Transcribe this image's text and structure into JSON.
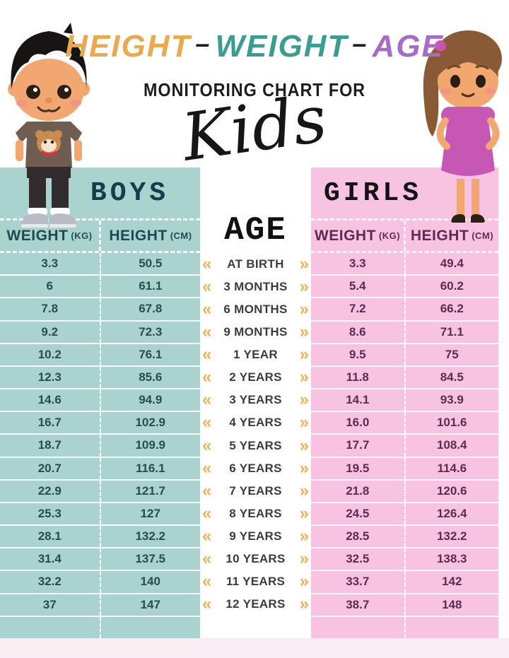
{
  "title": {
    "word1": "HEIGHT",
    "sep1": "–",
    "word2": "WEIGHT",
    "sep2": "–",
    "word3": "AGE",
    "subtitle": "MONITORING CHART FOR",
    "script_word": "Kids"
  },
  "boys": {
    "title": "BOYS",
    "weight_header": "WEIGHT",
    "weight_unit": "(KG)",
    "height_header": "HEIGHT",
    "height_unit": "(CM)"
  },
  "girls": {
    "title": "GIRLS",
    "weight_header": "WEIGHT",
    "weight_unit": "(KG)",
    "height_header": "HEIGHT",
    "height_unit": "(CM)"
  },
  "age": {
    "title": "AGE"
  },
  "icons": {
    "chevrons_left": "«",
    "chevrons_right": "»",
    "boy_illustration": "boy-cartoon",
    "girl_illustration": "girl-cartoon"
  },
  "colors": {
    "boys_panel": "#aad2cf",
    "girls_panel": "#f8c3e0",
    "title_height": "#e9a94e",
    "title_weight": "#3b9c93",
    "title_age": "#a66bc6",
    "chevron": "#f1b157",
    "boys_text": "#2a4b50",
    "girls_text": "#5c2b50",
    "footer_strip": "#f8edf3"
  },
  "chart_data": {
    "type": "table",
    "title": "HEIGHT - WEIGHT - AGE MONITORING CHART FOR Kids",
    "columns": [
      "Age",
      "Boys Weight (kg)",
      "Boys Height (cm)",
      "Girls Weight (kg)",
      "Girls Height (cm)"
    ],
    "rows": [
      {
        "age": "AT BIRTH",
        "boys_weight": "3.3",
        "boys_height": "50.5",
        "girls_weight": "3.3",
        "girls_height": "49.4"
      },
      {
        "age": "3 MONTHS",
        "boys_weight": "6",
        "boys_height": "61.1",
        "girls_weight": "5.4",
        "girls_height": "60.2"
      },
      {
        "age": "6 MONTHS",
        "boys_weight": "7.8",
        "boys_height": "67.8",
        "girls_weight": "7.2",
        "girls_height": "66.2"
      },
      {
        "age": "9 MONTHS",
        "boys_weight": "9.2",
        "boys_height": "72.3",
        "girls_weight": "8.6",
        "girls_height": "71.1"
      },
      {
        "age": "1 YEAR",
        "boys_weight": "10.2",
        "boys_height": "76.1",
        "girls_weight": "9.5",
        "girls_height": "75"
      },
      {
        "age": "2 YEARS",
        "boys_weight": "12.3",
        "boys_height": "85.6",
        "girls_weight": "11.8",
        "girls_height": "84.5"
      },
      {
        "age": "3 YEARS",
        "boys_weight": "14.6",
        "boys_height": "94.9",
        "girls_weight": "14.1",
        "girls_height": "93.9"
      },
      {
        "age": "4 YEARS",
        "boys_weight": "16.7",
        "boys_height": "102.9",
        "girls_weight": "16.0",
        "girls_height": "101.6"
      },
      {
        "age": "5 YEARS",
        "boys_weight": "18.7",
        "boys_height": "109.9",
        "girls_weight": "17.7",
        "girls_height": "108.4"
      },
      {
        "age": "6 YEARS",
        "boys_weight": "20.7",
        "boys_height": "116.1",
        "girls_weight": "19.5",
        "girls_height": "114.6"
      },
      {
        "age": "7 YEARS",
        "boys_weight": "22.9",
        "boys_height": "121.7",
        "girls_weight": "21.8",
        "girls_height": "120.6"
      },
      {
        "age": "8 YEARS",
        "boys_weight": "25.3",
        "boys_height": "127",
        "girls_weight": "24.5",
        "girls_height": "126.4"
      },
      {
        "age": "9 YEARS",
        "boys_weight": "28.1",
        "boys_height": "132.2",
        "girls_weight": "28.5",
        "girls_height": "132.2"
      },
      {
        "age": "10 YEARS",
        "boys_weight": "31.4",
        "boys_height": "137.5",
        "girls_weight": "32.5",
        "girls_height": "138.3"
      },
      {
        "age": "11 YEARS",
        "boys_weight": "32.2",
        "boys_height": "140",
        "girls_weight": "33.7",
        "girls_height": "142"
      },
      {
        "age": "12 YEARS",
        "boys_weight": "37",
        "boys_height": "147",
        "girls_weight": "38.7",
        "girls_height": "148"
      }
    ]
  }
}
